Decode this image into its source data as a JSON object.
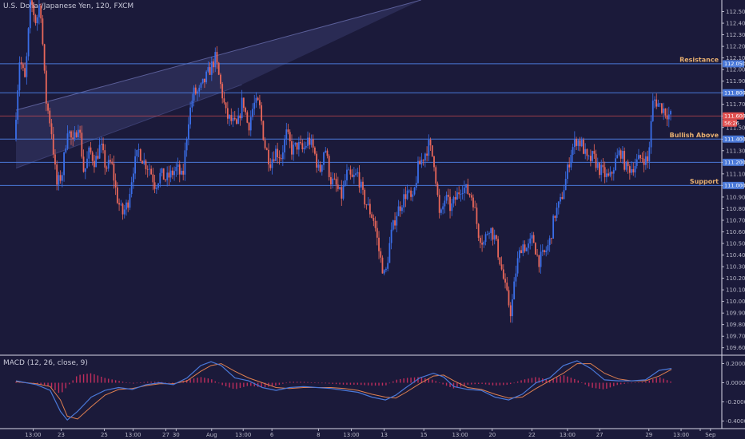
{
  "chart_data": {
    "type": "candlestick",
    "title": "U.S. Dollar/Japanese Yen, 120, FXCM",
    "price_axis": {
      "range": [
        109.55,
        112.6
      ],
      "ticks": [
        "112.500",
        "112.400",
        "112.300",
        "112.200",
        "112.100",
        "112.000",
        "111.900",
        "111.800",
        "111.700",
        "111.600",
        "111.500",
        "111.400",
        "111.300",
        "111.200",
        "111.100",
        "111.000",
        "110.900",
        "110.800",
        "110.700",
        "110.600",
        "110.500",
        "110.400",
        "110.300",
        "110.200",
        "110.100",
        "110.000",
        "109.900",
        "109.800",
        "109.700",
        "109.600"
      ]
    },
    "time_axis": {
      "range": [
        0,
        100
      ],
      "ticks": [
        {
          "t": 2.5,
          "label": "13:00"
        },
        {
          "t": 6.6,
          "label": "23"
        },
        {
          "t": 12.9,
          "label": "25"
        },
        {
          "t": 17.1,
          "label": "13:00"
        },
        {
          "t": 21.9,
          "label": "27"
        },
        {
          "t": 23.4,
          "label": "30"
        },
        {
          "t": 28.6,
          "label": "Aug"
        },
        {
          "t": 33.2,
          "label": "13:00"
        },
        {
          "t": 37.4,
          "label": "6"
        },
        {
          "t": 44.2,
          "label": "8"
        },
        {
          "t": 49.0,
          "label": "13:00"
        },
        {
          "t": 53.8,
          "label": "13"
        },
        {
          "t": 59.6,
          "label": "15"
        },
        {
          "t": 64.9,
          "label": "13:00"
        },
        {
          "t": 69.6,
          "label": "20"
        },
        {
          "t": 75.4,
          "label": "22"
        },
        {
          "t": 80.6,
          "label": "13:00"
        },
        {
          "t": 85.3,
          "label": "27"
        },
        {
          "t": 92.5,
          "label": "29"
        },
        {
          "t": 97.2,
          "label": "13:00"
        },
        {
          "t": 100.0,
          "label": ""
        },
        {
          "t": 101.5,
          "label": "Sep"
        }
      ]
    },
    "levels": [
      {
        "name": "Resistance",
        "price": 112.05,
        "tag": "112.050",
        "color": "#4a78d8"
      },
      {
        "name": "",
        "price": 111.8,
        "tag": "111.800",
        "color": "#4a78d8"
      },
      {
        "name": "Bullish Above",
        "price": 111.4,
        "tag": "111.400",
        "color": "#4a78d8"
      },
      {
        "name": "",
        "price": 111.2,
        "tag": "111.200",
        "color": "#4a78d8"
      },
      {
        "name": "Support",
        "price": 111.0,
        "tag": "111.000",
        "color": "#4a78d8"
      }
    ],
    "current_price": {
      "price": 111.6,
      "tag": "111.600",
      "countdown": "56:26",
      "color": "#e05050"
    },
    "channel": {
      "upper": [
        [
          0,
          111.65
        ],
        [
          59.2,
          112.6
        ]
      ],
      "lower": [
        [
          0,
          111.15
        ],
        [
          33.0,
          111.87
        ]
      ],
      "fill": "#2c2e58"
    },
    "price_path": [
      [
        0,
        111.4
      ],
      [
        0.8,
        112.1
      ],
      [
        1.6,
        111.9
      ],
      [
        2.4,
        112.6
      ],
      [
        3.2,
        112.4
      ],
      [
        3.8,
        112.6
      ],
      [
        4.6,
        111.75
      ],
      [
        5.4,
        111.5
      ],
      [
        6.2,
        111.0
      ],
      [
        7.0,
        111.1
      ],
      [
        7.8,
        111.5
      ],
      [
        8.6,
        111.35
      ],
      [
        9.4,
        111.55
      ],
      [
        10.2,
        111.1
      ],
      [
        11.0,
        111.3
      ],
      [
        11.8,
        111.2
      ],
      [
        12.6,
        111.35
      ],
      [
        13.4,
        111.15
      ],
      [
        14.2,
        111.2
      ],
      [
        15.0,
        110.9
      ],
      [
        15.8,
        110.75
      ],
      [
        16.6,
        110.85
      ],
      [
        17.4,
        111.15
      ],
      [
        18.2,
        111.3
      ],
      [
        19.0,
        111.2
      ],
      [
        19.8,
        111.15
      ],
      [
        20.6,
        111.0
      ],
      [
        21.4,
        111.1
      ],
      [
        22.2,
        111.05
      ],
      [
        23.0,
        111.1
      ],
      [
        23.8,
        111.15
      ],
      [
        24.6,
        111.05
      ],
      [
        25.4,
        111.55
      ],
      [
        26.2,
        111.8
      ],
      [
        27.0,
        111.8
      ],
      [
        27.8,
        111.9
      ],
      [
        28.6,
        112.0
      ],
      [
        29.4,
        112.1
      ],
      [
        30.2,
        111.85
      ],
      [
        31.0,
        111.6
      ],
      [
        31.8,
        111.55
      ],
      [
        32.6,
        111.5
      ],
      [
        33.4,
        111.75
      ],
      [
        34.2,
        111.5
      ],
      [
        35.0,
        111.7
      ],
      [
        35.8,
        111.7
      ],
      [
        36.6,
        111.35
      ],
      [
        37.4,
        111.2
      ],
      [
        38.2,
        111.3
      ],
      [
        39.0,
        111.25
      ],
      [
        39.8,
        111.45
      ],
      [
        40.6,
        111.3
      ],
      [
        41.4,
        111.35
      ],
      [
        42.2,
        111.3
      ],
      [
        43.0,
        111.4
      ],
      [
        43.8,
        111.3
      ],
      [
        44.6,
        111.1
      ],
      [
        45.4,
        111.35
      ],
      [
        46.2,
        111.05
      ],
      [
        47.0,
        111.0
      ],
      [
        47.8,
        110.9
      ],
      [
        48.6,
        111.1
      ],
      [
        49.4,
        111.05
      ],
      [
        50.2,
        111.1
      ],
      [
        51.0,
        110.9
      ],
      [
        51.8,
        110.8
      ],
      [
        52.6,
        110.7
      ],
      [
        53.4,
        110.4
      ],
      [
        54.2,
        110.2
      ],
      [
        55.0,
        110.55
      ],
      [
        55.8,
        110.75
      ],
      [
        56.6,
        110.85
      ],
      [
        57.4,
        110.95
      ],
      [
        58.2,
        110.85
      ],
      [
        59.0,
        111.15
      ],
      [
        59.8,
        111.25
      ],
      [
        60.6,
        111.35
      ],
      [
        61.4,
        111.2
      ],
      [
        62.2,
        110.7
      ],
      [
        63.0,
        110.9
      ],
      [
        63.8,
        110.8
      ],
      [
        64.6,
        110.9
      ],
      [
        65.4,
        111.0
      ],
      [
        66.2,
        110.95
      ],
      [
        67.0,
        110.9
      ],
      [
        67.8,
        110.6
      ],
      [
        68.6,
        110.5
      ],
      [
        69.4,
        110.65
      ],
      [
        70.2,
        110.55
      ],
      [
        71.0,
        110.35
      ],
      [
        71.8,
        110.1
      ],
      [
        72.6,
        109.9
      ],
      [
        73.4,
        110.3
      ],
      [
        74.2,
        110.5
      ],
      [
        75.0,
        110.45
      ],
      [
        75.8,
        110.55
      ],
      [
        76.6,
        110.35
      ],
      [
        77.4,
        110.4
      ],
      [
        78.2,
        110.5
      ],
      [
        79.0,
        110.75
      ],
      [
        79.8,
        110.85
      ],
      [
        80.6,
        111.05
      ],
      [
        81.4,
        111.3
      ],
      [
        82.2,
        111.4
      ],
      [
        83.0,
        111.35
      ],
      [
        83.8,
        111.2
      ],
      [
        84.6,
        111.25
      ],
      [
        85.4,
        111.15
      ],
      [
        86.2,
        111.1
      ],
      [
        87.0,
        111.05
      ],
      [
        87.8,
        111.2
      ],
      [
        88.6,
        111.3
      ],
      [
        89.4,
        111.15
      ],
      [
        90.2,
        111.15
      ],
      [
        91.0,
        111.2
      ],
      [
        91.8,
        111.25
      ],
      [
        92.6,
        111.2
      ],
      [
        93.4,
        111.75
      ],
      [
        94.2,
        111.7
      ],
      [
        95.0,
        111.65
      ],
      [
        95.8,
        111.6
      ]
    ],
    "macd": {
      "title": "MACD (12, 26, close, 9)",
      "range": [
        -0.48,
        0.28
      ],
      "ticks": [
        "0.2000",
        "0.0000",
        "-0.2000",
        "-0.4000"
      ],
      "macd_line": [
        [
          0,
          0.02
        ],
        [
          3,
          -0.02
        ],
        [
          5,
          -0.08
        ],
        [
          6.5,
          -0.3
        ],
        [
          7.5,
          -0.39
        ],
        [
          9,
          -0.3
        ],
        [
          11,
          -0.15
        ],
        [
          13,
          -0.08
        ],
        [
          15,
          -0.05
        ],
        [
          17,
          -0.07
        ],
        [
          19,
          -0.02
        ],
        [
          21,
          0.0
        ],
        [
          23,
          -0.02
        ],
        [
          25,
          0.05
        ],
        [
          27,
          0.18
        ],
        [
          28.5,
          0.22
        ],
        [
          30,
          0.18
        ],
        [
          32,
          0.05
        ],
        [
          34,
          0.02
        ],
        [
          36,
          -0.05
        ],
        [
          38,
          -0.08
        ],
        [
          40,
          -0.05
        ],
        [
          42,
          -0.04
        ],
        [
          44,
          -0.05
        ],
        [
          46,
          -0.06
        ],
        [
          48,
          -0.08
        ],
        [
          50,
          -0.1
        ],
        [
          52,
          -0.15
        ],
        [
          54,
          -0.18
        ],
        [
          55.5,
          -0.13
        ],
        [
          57,
          -0.05
        ],
        [
          59,
          0.05
        ],
        [
          61,
          0.1
        ],
        [
          62.5,
          0.06
        ],
        [
          64,
          -0.04
        ],
        [
          66,
          -0.07
        ],
        [
          68,
          -0.08
        ],
        [
          70,
          -0.15
        ],
        [
          72,
          -0.18
        ],
        [
          74,
          -0.12
        ],
        [
          76,
          0.0
        ],
        [
          78,
          0.05
        ],
        [
          80,
          0.18
        ],
        [
          82,
          0.23
        ],
        [
          84,
          0.15
        ],
        [
          86,
          0.03
        ],
        [
          88,
          0.02
        ],
        [
          90,
          0.02
        ],
        [
          92,
          0.03
        ],
        [
          94,
          0.13
        ],
        [
          95.8,
          0.15
        ]
      ],
      "signal_line": [
        [
          0,
          0.01
        ],
        [
          3,
          -0.01
        ],
        [
          5,
          -0.04
        ],
        [
          6.5,
          -0.18
        ],
        [
          7.5,
          -0.35
        ],
        [
          9,
          -0.38
        ],
        [
          11,
          -0.25
        ],
        [
          13,
          -0.13
        ],
        [
          15,
          -0.07
        ],
        [
          17,
          -0.06
        ],
        [
          19,
          -0.03
        ],
        [
          21,
          -0.01
        ],
        [
          23,
          -0.01
        ],
        [
          25,
          0.02
        ],
        [
          27,
          0.12
        ],
        [
          28.5,
          0.18
        ],
        [
          30,
          0.2
        ],
        [
          32,
          0.12
        ],
        [
          34,
          0.05
        ],
        [
          36,
          0.0
        ],
        [
          38,
          -0.05
        ],
        [
          40,
          -0.06
        ],
        [
          42,
          -0.05
        ],
        [
          44,
          -0.05
        ],
        [
          46,
          -0.05
        ],
        [
          48,
          -0.06
        ],
        [
          50,
          -0.08
        ],
        [
          52,
          -0.12
        ],
        [
          54,
          -0.15
        ],
        [
          55.5,
          -0.16
        ],
        [
          57,
          -0.1
        ],
        [
          59,
          -0.01
        ],
        [
          61,
          0.07
        ],
        [
          62.5,
          0.08
        ],
        [
          64,
          0.02
        ],
        [
          66,
          -0.05
        ],
        [
          68,
          -0.07
        ],
        [
          70,
          -0.12
        ],
        [
          72,
          -0.16
        ],
        [
          74,
          -0.15
        ],
        [
          76,
          -0.06
        ],
        [
          78,
          0.02
        ],
        [
          80,
          0.1
        ],
        [
          82,
          0.2
        ],
        [
          84,
          0.2
        ],
        [
          86,
          0.1
        ],
        [
          88,
          0.04
        ],
        [
          90,
          0.02
        ],
        [
          92,
          0.02
        ],
        [
          94,
          0.07
        ],
        [
          95.8,
          0.14
        ]
      ],
      "macd_color": "#4a78d8",
      "signal_color": "#e08050",
      "histogram_color": "#d03060"
    },
    "colors": {
      "up": "#3a6ee8",
      "down": "#e8675a",
      "grid_line": "#4a78d8",
      "background": "#1b1a3a"
    }
  }
}
